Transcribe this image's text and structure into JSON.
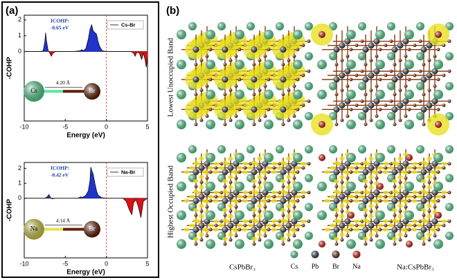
{
  "panel_a_label": "(a)",
  "chart_data": [
    {
      "type": "cohp",
      "xlabel": "Energy (eV)",
      "ylabel": "-COHP",
      "xlim": [
        -10,
        5
      ],
      "xticks": [
        -10,
        -5,
        0,
        5
      ],
      "ylim": [
        -4.4,
        2.3
      ],
      "yticks": [
        0,
        1,
        2
      ],
      "vline": 0,
      "annotation": [
        "ICOHP:",
        "-0.65 eV"
      ],
      "inset": {
        "left": "Cs",
        "right": "Br",
        "distance": "4.20 Å",
        "left_color": "#5ee8a0"
      },
      "series": [
        {
          "name": "Cs-Br",
          "color": "#000000",
          "positive_color": "#2233cc",
          "negative_color": "#dd1111",
          "x": [
            -10,
            -8,
            -7.7,
            -7.5,
            -7.4,
            -7.3,
            -7.1,
            -6.9,
            -6.7,
            -6.5,
            -6.2,
            -4,
            -3.2,
            -3.0,
            -2.8,
            -2.5,
            -2.2,
            -2.0,
            -1.8,
            -1.6,
            -1.4,
            -1.2,
            -1.0,
            -0.8,
            -0.5,
            0,
            3.0,
            3.3,
            3.5,
            3.7,
            4.0,
            4.3,
            4.5,
            4.7,
            4.85,
            5
          ],
          "values": [
            0,
            0,
            0.05,
            0.6,
            1.2,
            0.7,
            0.1,
            -0.1,
            -0.3,
            -0.1,
            0,
            0,
            0.05,
            0.12,
            0.05,
            0.2,
            0.8,
            1.4,
            1.7,
            1.3,
            1.2,
            1.1,
            0.6,
            0.3,
            0.05,
            0,
            0,
            -0.1,
            -0.3,
            -0.05,
            -0.1,
            -0.5,
            -0.1,
            -0.5,
            -1.0,
            -0.4
          ]
        }
      ]
    },
    {
      "type": "cohp",
      "xlabel": "Energy (eV)",
      "ylabel": "-COHP",
      "xlim": [
        -10,
        5
      ],
      "xticks": [
        -10,
        -5,
        0,
        5
      ],
      "ylim": [
        -4.0,
        2.4
      ],
      "yticks": [
        0,
        1,
        2
      ],
      "vline": 0,
      "annotation": [
        "ICOHP:",
        "-0.42 eV"
      ],
      "inset": {
        "left": "Na",
        "right": "Br",
        "distance": "4.14 Å",
        "left_color": "#e8e050"
      },
      "series": [
        {
          "name": "Na-Br",
          "color": "#000000",
          "positive_color": "#2233cc",
          "negative_color": "#dd1111",
          "x": [
            -10,
            -7.5,
            -7.2,
            -7.0,
            -6.8,
            -6.6,
            -6.3,
            -3.5,
            -3.1,
            -2.9,
            -2.5,
            -2.2,
            -2.0,
            -1.9,
            -1.8,
            -1.6,
            -1.4,
            -1.2,
            -1.0,
            -0.6,
            0,
            2.0,
            2.4,
            2.8,
            3.1,
            3.3,
            3.6,
            3.9,
            4.2,
            4.5,
            5
          ],
          "values": [
            0,
            0,
            0.1,
            0.25,
            0.05,
            -0.05,
            0,
            0,
            0.1,
            0.05,
            0.2,
            0.5,
            1.2,
            2.1,
            1.9,
            1.6,
            1.0,
            0.5,
            0.2,
            0.05,
            0,
            0,
            -0.2,
            -0.8,
            -1.1,
            -0.3,
            -0.1,
            -0.6,
            -1.3,
            -0.2,
            0
          ]
        }
      ]
    }
  ],
  "panel_b": {
    "label": "(b)",
    "row_labels": [
      "Lowest Unoccupied Band",
      "Highest Occupied Band"
    ],
    "column_labels": [
      "CsPbBr₃",
      "Na:CsPbBr₃"
    ],
    "legend": [
      {
        "label": "Cs",
        "color": "#5ee8a0"
      },
      {
        "label": "Pb",
        "color": "#3c4650"
      },
      {
        "label": "Br",
        "color": "#7a3010"
      },
      {
        "label": "Na",
        "color": "#e02010"
      }
    ]
  }
}
